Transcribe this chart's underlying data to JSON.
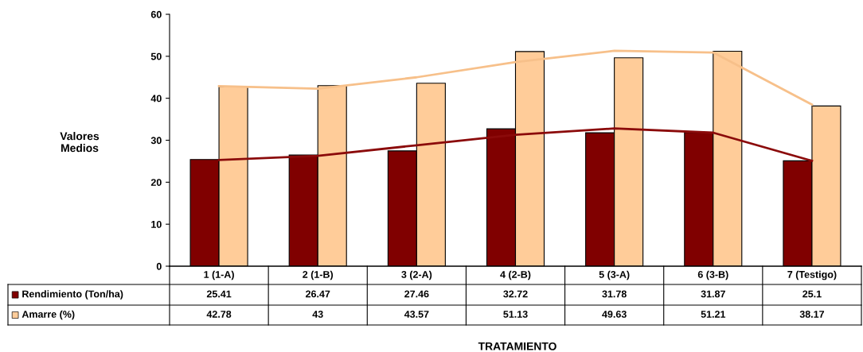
{
  "chart_data": {
    "type": "bar",
    "ylabel": "Valores\nMedios",
    "annotations": [
      "TRATAMIENTO"
    ],
    "categories": [
      "1 (1-A)",
      "2 (1-B)",
      "3 (2-A)",
      "4 (2-B)",
      "5 (3-A)",
      "6 (3-B)",
      "7 (Testigo)"
    ],
    "series": [
      {
        "name": "Rendimiento (Ton/ha)",
        "color": "#800000",
        "values": [
          25.41,
          26.47,
          27.46,
          32.72,
          31.78,
          31.87,
          25.1
        ],
        "value_labels": [
          "25.41",
          "26.47",
          "27.46",
          "32.72",
          "31.78",
          "31.87",
          "25.1"
        ]
      },
      {
        "name": "Amarre (%)",
        "color": "#ffcc99",
        "values": [
          42.78,
          43,
          43.57,
          51.13,
          49.63,
          51.21,
          38.17
        ],
        "value_labels": [
          "42.78",
          "43",
          "43.57",
          "51.13",
          "49.63",
          "51.21",
          "38.17"
        ]
      },
      {
        "type": "line",
        "color": "#8b0a0a",
        "values": [
          25.3,
          26.3,
          28.8,
          31.3,
          32.8,
          31.8,
          25.1
        ]
      },
      {
        "type": "line",
        "color": "#f7c08a",
        "values": [
          42.9,
          42.3,
          45,
          48.6,
          51.3,
          50.9,
          38.5
        ]
      }
    ],
    "ylim": [
      0,
      60
    ],
    "yticks": [
      0,
      10,
      20,
      30,
      40,
      50,
      60
    ],
    "grid": false,
    "legend": "bottom left"
  }
}
